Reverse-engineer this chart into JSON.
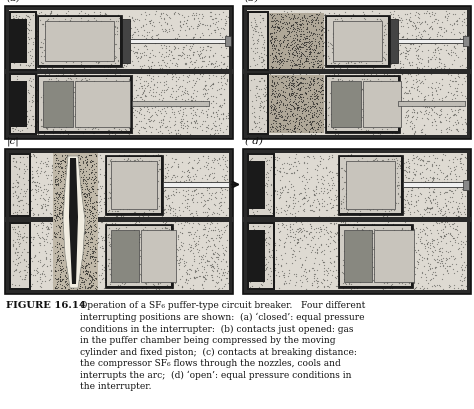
{
  "bg_white": "#ffffff",
  "stipple_bg": "#e8e4de",
  "stipple_dot": "#888880",
  "dark": "#1a1a1a",
  "medium": "#555555",
  "light": "#cccccc",
  "white": "#f5f5f5",
  "compressed_bg": "#b8b0a0",
  "compressed_dot": "#333330",
  "arc_dark": "#222222",
  "caption_label": "FIGURE 16.14",
  "caption_body": "Operation of a SF₆ puffer-type circuit breaker.   Four different\ninterrupting positions are shown:  (a) ‘closed’: equal pressure\nconditions in the interrupter:  (b) contacts just opened: gas\nin the puffer chamber being compressed by the moving\ncylinder and fixed piston;  (c) contacts at breaking distance:\nthe compressor SF₆ flows through the nozzles, cools and\ninterrupts the arc;  (d) ‘open’: equal pressure conditions in\nthe interrupter.",
  "panel_labels": [
    "(a)",
    "(b)",
    "|c|",
    "( d)"
  ]
}
